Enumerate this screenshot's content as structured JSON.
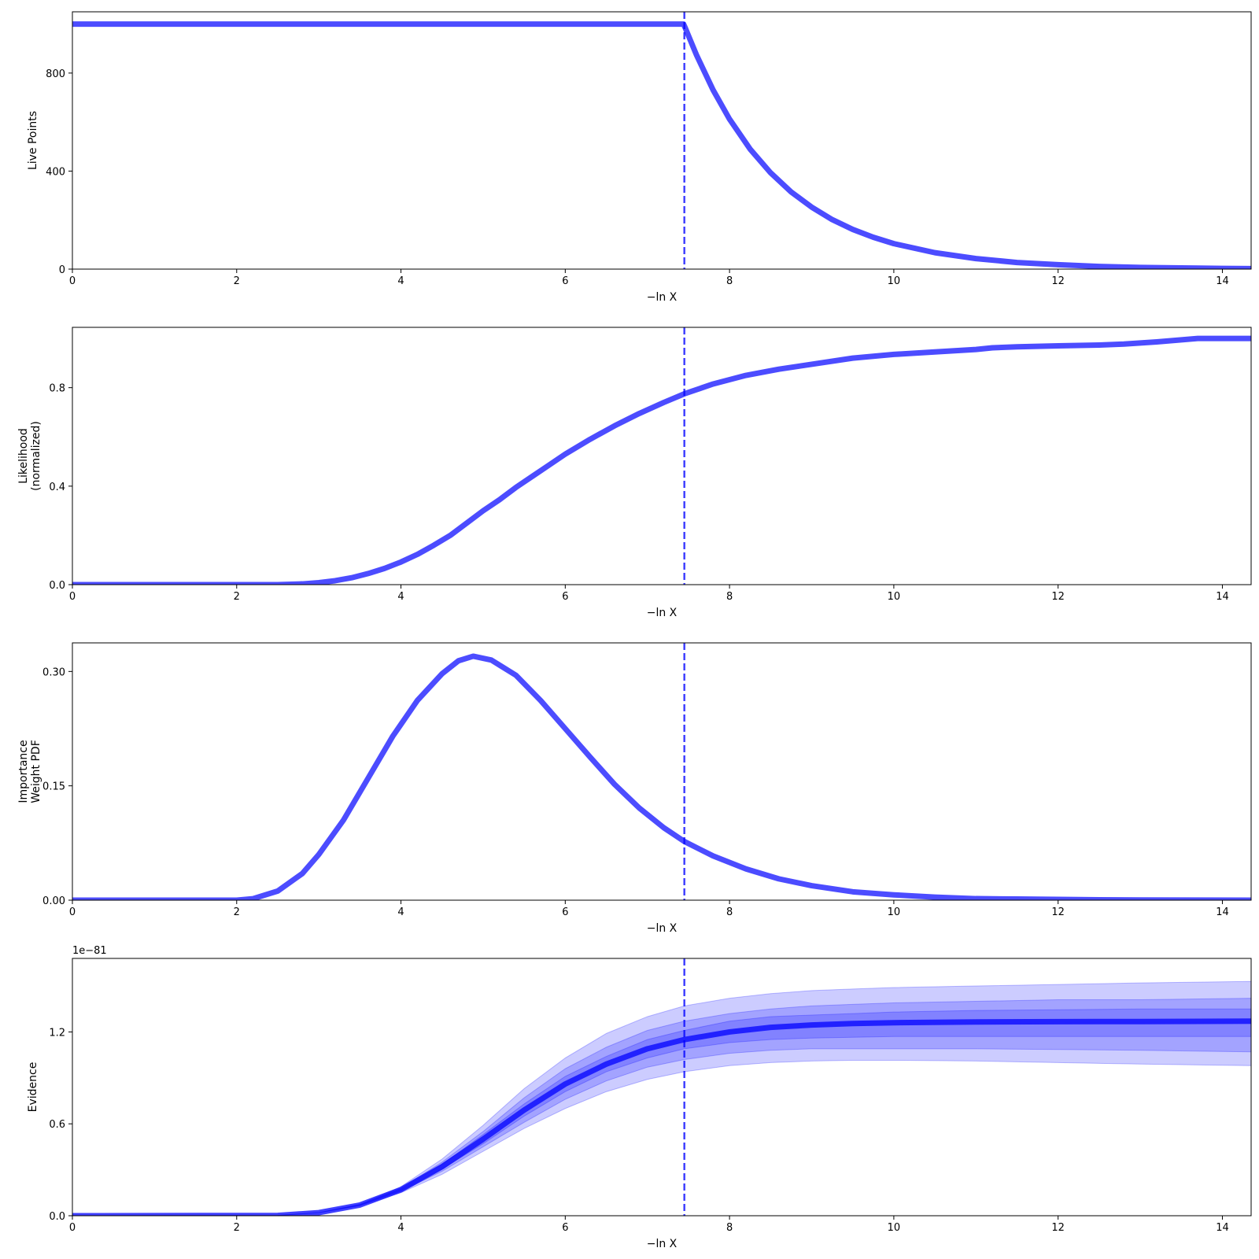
{
  "figure": {
    "line_color": "#0000ff",
    "vline_color": "#0000ff",
    "band_color": "#0000ff"
  },
  "chart_data": [
    {
      "type": "line",
      "ylabel": [
        "Live Points"
      ],
      "xlabel": "−ln X",
      "xlim": [
        0,
        14.35
      ],
      "ylim": [
        0,
        1050
      ],
      "xticks": [
        0,
        2,
        4,
        6,
        8,
        10,
        12,
        14
      ],
      "yticks": [
        0,
        400,
        800
      ],
      "ytick_labels": [
        "0",
        "400",
        "800"
      ],
      "vline": 7.45,
      "series": [
        {
          "x": [
            0,
            7.44,
            7.46,
            7.6,
            7.8,
            8.0,
            8.25,
            8.5,
            8.75,
            9.0,
            9.25,
            9.5,
            9.75,
            10.0,
            10.5,
            11.0,
            11.5,
            12.0,
            12.5,
            13.0,
            13.5,
            14.0,
            14.35
          ],
          "y": [
            1000,
            1000,
            985,
            872,
            731,
            612,
            490,
            393,
            315,
            253,
            202,
            162,
            130,
            104,
            67,
            43,
            27,
            18,
            11,
            7,
            5,
            3,
            2
          ]
        }
      ]
    },
    {
      "type": "line",
      "ylabel": [
        "Likelihood",
        "(normalized)"
      ],
      "xlabel": "−ln X",
      "xlim": [
        0,
        14.35
      ],
      "ylim": [
        0,
        1.045
      ],
      "xticks": [
        0,
        2,
        4,
        6,
        8,
        10,
        12,
        14
      ],
      "yticks": [
        0,
        0.4,
        0.8
      ],
      "ytick_labels": [
        "0.0",
        "0.4",
        "0.8"
      ],
      "vline": 7.45,
      "series": [
        {
          "x": [
            0,
            2.5,
            2.8,
            3.0,
            3.2,
            3.4,
            3.6,
            3.8,
            4.0,
            4.2,
            4.4,
            4.6,
            4.8,
            5.0,
            5.2,
            5.4,
            5.6,
            5.8,
            6.0,
            6.3,
            6.6,
            6.9,
            7.2,
            7.45,
            7.8,
            8.2,
            8.6,
            9.0,
            9.5,
            10.0,
            10.5,
            11.0,
            11.2,
            11.5,
            12.0,
            12.5,
            12.8,
            13.2,
            13.7,
            14.35
          ],
          "y": [
            0.0,
            0.0,
            0.003,
            0.008,
            0.016,
            0.028,
            0.045,
            0.066,
            0.092,
            0.123,
            0.16,
            0.2,
            0.25,
            0.3,
            0.345,
            0.395,
            0.44,
            0.485,
            0.53,
            0.59,
            0.645,
            0.695,
            0.74,
            0.775,
            0.815,
            0.85,
            0.875,
            0.895,
            0.92,
            0.935,
            0.945,
            0.955,
            0.962,
            0.966,
            0.97,
            0.973,
            0.977,
            0.986,
            1.0,
            1.0
          ]
        }
      ]
    },
    {
      "type": "line",
      "ylabel": [
        "Importance",
        "Weight PDF"
      ],
      "xlabel": "−ln X",
      "xlim": [
        0,
        14.35
      ],
      "ylim": [
        0,
        0.3375
      ],
      "xticks": [
        0,
        2,
        4,
        6,
        8,
        10,
        12,
        14
      ],
      "yticks": [
        0,
        0.15,
        0.3
      ],
      "ytick_labels": [
        "0.00",
        "0.15",
        "0.30"
      ],
      "vline": 7.45,
      "series": [
        {
          "x": [
            0,
            2.0,
            2.2,
            2.5,
            2.8,
            3.0,
            3.3,
            3.6,
            3.9,
            4.2,
            4.5,
            4.7,
            4.88,
            5.1,
            5.4,
            5.7,
            6.0,
            6.3,
            6.6,
            6.9,
            7.2,
            7.45,
            7.8,
            8.2,
            8.6,
            9.0,
            9.5,
            10.0,
            10.5,
            11.0,
            11.5,
            12.0,
            12.5,
            13.0,
            14.35
          ],
          "y": [
            0,
            0,
            0.002,
            0.012,
            0.035,
            0.06,
            0.105,
            0.16,
            0.215,
            0.262,
            0.297,
            0.314,
            0.32,
            0.315,
            0.295,
            0.262,
            0.225,
            0.188,
            0.152,
            0.121,
            0.095,
            0.077,
            0.058,
            0.041,
            0.028,
            0.019,
            0.011,
            0.007,
            0.004,
            0.002,
            0.0015,
            0.001,
            0.0005,
            0.0003,
            0
          ]
        }
      ]
    },
    {
      "type": "area",
      "ylabel": [
        "Evidence"
      ],
      "xlabel": "−ln X",
      "offset_text": "1e−81",
      "xlim": [
        0,
        14.35
      ],
      "ylim": [
        0,
        1.68
      ],
      "xticks": [
        0,
        2,
        4,
        6,
        8,
        10,
        12,
        14
      ],
      "yticks": [
        0,
        0.6,
        1.2
      ],
      "ytick_labels": [
        "0.0",
        "0.6",
        "1.2"
      ],
      "vline": 7.45,
      "x": [
        0,
        2.5,
        3.0,
        3.5,
        4.0,
        4.5,
        5.0,
        5.5,
        6.0,
        6.5,
        7.0,
        7.45,
        8.0,
        8.5,
        9.0,
        9.5,
        10.0,
        11.0,
        12.0,
        13.0,
        14.35
      ],
      "series": [
        {
          "name": "",
          "y": [
            0,
            0.002,
            0.02,
            0.07,
            0.17,
            0.32,
            0.5,
            0.69,
            0.86,
            0.99,
            1.09,
            1.15,
            1.2,
            1.23,
            1.245,
            1.255,
            1.26,
            1.265,
            1.267,
            1.268,
            1.27
          ]
        }
      ],
      "bands": [
        {
          "level": "3-sigma",
          "lower": [
            0,
            0.002,
            0.02,
            0.065,
            0.15,
            0.27,
            0.42,
            0.57,
            0.7,
            0.81,
            0.89,
            0.94,
            0.98,
            1.0,
            1.01,
            1.015,
            1.015,
            1.01,
            1.0,
            0.99,
            0.98
          ],
          "upper": [
            0,
            0.002,
            0.02,
            0.075,
            0.19,
            0.37,
            0.59,
            0.83,
            1.03,
            1.19,
            1.3,
            1.37,
            1.42,
            1.45,
            1.47,
            1.48,
            1.49,
            1.5,
            1.51,
            1.52,
            1.53
          ]
        },
        {
          "level": "2-sigma",
          "lower": [
            0,
            0.002,
            0.02,
            0.068,
            0.16,
            0.29,
            0.45,
            0.61,
            0.76,
            0.88,
            0.97,
            1.02,
            1.06,
            1.08,
            1.09,
            1.09,
            1.09,
            1.09,
            1.085,
            1.08,
            1.07
          ],
          "upper": [
            0,
            0.002,
            0.02,
            0.072,
            0.18,
            0.35,
            0.55,
            0.77,
            0.96,
            1.1,
            1.21,
            1.27,
            1.32,
            1.35,
            1.37,
            1.38,
            1.39,
            1.4,
            1.41,
            1.41,
            1.42
          ]
        },
        {
          "level": "1-sigma",
          "lower": [
            0,
            0.002,
            0.02,
            0.069,
            0.165,
            0.305,
            0.47,
            0.65,
            0.81,
            0.94,
            1.03,
            1.09,
            1.13,
            1.15,
            1.16,
            1.165,
            1.17,
            1.17,
            1.17,
            1.17,
            1.17
          ],
          "upper": [
            0,
            0.002,
            0.02,
            0.071,
            0.175,
            0.335,
            0.53,
            0.73,
            0.91,
            1.04,
            1.15,
            1.21,
            1.27,
            1.3,
            1.31,
            1.32,
            1.33,
            1.34,
            1.345,
            1.35,
            1.35
          ]
        }
      ]
    }
  ]
}
